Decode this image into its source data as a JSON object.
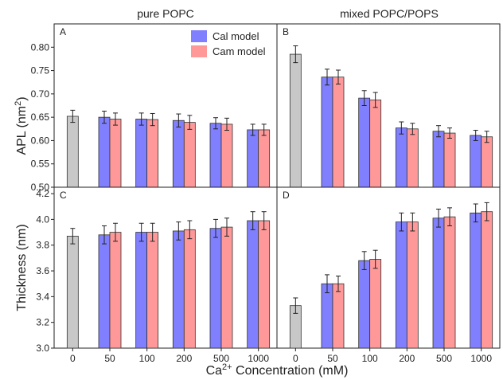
{
  "column_titles": [
    "pure POPC",
    "mixed POPC/POPS"
  ],
  "ylabel_top": "APL (nm",
  "ylabel_top_sup": "2",
  "ylabel_top_end": ")",
  "ylabel_bottom": "Thickness (nm)",
  "xlabel_pre": "Ca",
  "xlabel_sup": "2+",
  "xlabel_post": " Concentration (mM)",
  "legend": [
    {
      "name": "Cal model",
      "color": "#8080ff"
    },
    {
      "name": "Cam model",
      "color": "#ff9999"
    }
  ],
  "colors": {
    "control": "#c8c8c8",
    "cal": "#8080ff",
    "cam": "#ff9999"
  },
  "chart_data": [
    {
      "panel": "A",
      "type": "bar",
      "title": "pure POPC",
      "categories": [
        "0",
        "50",
        "100",
        "200",
        "500",
        "1000"
      ],
      "control": {
        "value": 0.652,
        "error": 0.013
      },
      "series": [
        {
          "name": "Cal model",
          "values": [
            null,
            0.65,
            0.646,
            0.643,
            0.637,
            0.623
          ],
          "errors": [
            null,
            0.013,
            0.013,
            0.014,
            0.012,
            0.012
          ]
        },
        {
          "name": "Cam model",
          "values": [
            null,
            0.646,
            0.645,
            0.639,
            0.635,
            0.623
          ],
          "errors": [
            null,
            0.013,
            0.013,
            0.015,
            0.013,
            0.012
          ]
        }
      ],
      "ylim": [
        0.5,
        0.85
      ],
      "yticks": [
        "0.50",
        "0.55",
        "0.60",
        "0.65",
        "0.70",
        "0.75",
        "0.80"
      ],
      "ylabel": "APL (nm2)"
    },
    {
      "panel": "B",
      "type": "bar",
      "title": "mixed POPC/POPS",
      "categories": [
        "0",
        "50",
        "100",
        "200",
        "500",
        "1000"
      ],
      "control": {
        "value": 0.785,
        "error": 0.018
      },
      "series": [
        {
          "name": "Cal model",
          "values": [
            null,
            0.736,
            0.691,
            0.627,
            0.62,
            0.611
          ],
          "errors": [
            null,
            0.017,
            0.016,
            0.013,
            0.012,
            0.011
          ]
        },
        {
          "name": "Cam model",
          "values": [
            null,
            0.736,
            0.687,
            0.625,
            0.616,
            0.608
          ],
          "errors": [
            null,
            0.015,
            0.016,
            0.012,
            0.011,
            0.012
          ]
        }
      ],
      "ylim": [
        0.5,
        0.85
      ]
    },
    {
      "panel": "C",
      "type": "bar",
      "categories": [
        "0",
        "50",
        "100",
        "200",
        "500",
        "1000"
      ],
      "control": {
        "value": 3.87,
        "error": 0.06
      },
      "series": [
        {
          "name": "Cal model",
          "values": [
            null,
            3.88,
            3.9,
            3.91,
            3.93,
            3.99
          ],
          "errors": [
            null,
            0.07,
            0.07,
            0.07,
            0.07,
            0.07
          ]
        },
        {
          "name": "Cam model",
          "values": [
            null,
            3.9,
            3.9,
            3.92,
            3.94,
            3.99
          ],
          "errors": [
            null,
            0.07,
            0.07,
            0.07,
            0.07,
            0.07
          ]
        }
      ],
      "ylim": [
        3.0,
        4.25
      ],
      "yticks": [
        "3.0",
        "3.2",
        "3.4",
        "3.6",
        "3.8",
        "4.0",
        "4.2"
      ],
      "ylabel": "Thickness (nm)"
    },
    {
      "panel": "D",
      "type": "bar",
      "categories": [
        "0",
        "50",
        "100",
        "200",
        "500",
        "1000"
      ],
      "control": {
        "value": 3.33,
        "error": 0.06
      },
      "series": [
        {
          "name": "Cal model",
          "values": [
            null,
            3.5,
            3.68,
            3.98,
            4.01,
            4.05
          ],
          "errors": [
            null,
            0.07,
            0.07,
            0.07,
            0.07,
            0.07
          ]
        },
        {
          "name": "Cam model",
          "values": [
            null,
            3.5,
            3.69,
            3.98,
            4.02,
            4.06
          ],
          "errors": [
            null,
            0.06,
            0.07,
            0.07,
            0.07,
            0.07
          ]
        }
      ],
      "ylim": [
        3.0,
        4.25
      ]
    }
  ]
}
